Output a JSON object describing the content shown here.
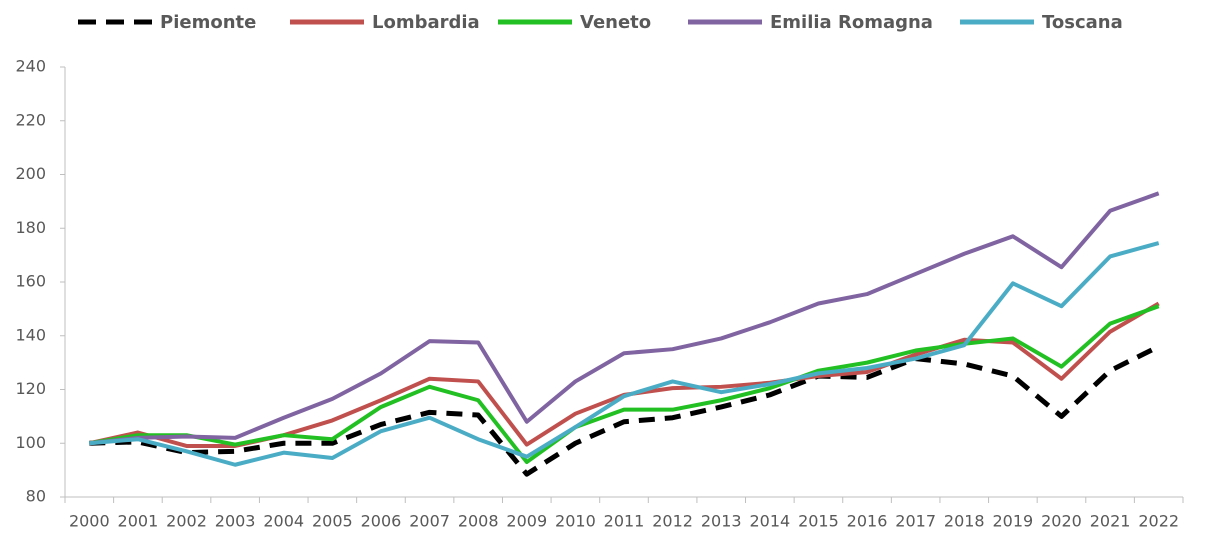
{
  "chart_data": {
    "type": "line",
    "categories": [
      "2000",
      "2001",
      "2002",
      "2003",
      "2004",
      "2005",
      "2006",
      "2007",
      "2008",
      "2009",
      "2010",
      "2011",
      "2012",
      "2013",
      "2014",
      "2015",
      "2016",
      "2017",
      "2018",
      "2019",
      "2020",
      "2021",
      "2022"
    ],
    "series": [
      {
        "name": "Piemonte",
        "color": "#000000",
        "dashed": true,
        "values": [
          100,
          100.5,
          96.5,
          97,
          100,
          100,
          107,
          111.5,
          110.5,
          88.5,
          100,
          108,
          109.5,
          113.5,
          118,
          125,
          124.5,
          131.5,
          129.5,
          125,
          110,
          127,
          136
        ]
      },
      {
        "name": "Lombardia",
        "color": "#c0504d",
        "values": [
          100,
          104,
          99,
          99,
          103,
          108.5,
          116,
          124,
          123,
          99.5,
          111,
          118,
          120.5,
          121,
          122.5,
          125,
          126.5,
          133,
          138.5,
          137.5,
          124,
          141.5,
          152
        ]
      },
      {
        "name": "Veneto",
        "color": "#22c022",
        "values": [
          100,
          103,
          103,
          99.5,
          103,
          101.5,
          113.5,
          121,
          116,
          93,
          106,
          112.5,
          112.5,
          116,
          120.5,
          127,
          130,
          134.5,
          137,
          139,
          128.5,
          144.5,
          151
        ]
      },
      {
        "name": "Emilia Romagna",
        "color": "#8064a2",
        "values": [
          100,
          102,
          102.5,
          102,
          109.5,
          116.5,
          126,
          138,
          137.5,
          108,
          123,
          133.5,
          135,
          139,
          145,
          152,
          155.5,
          163,
          170.5,
          177,
          165.5,
          186.5,
          193
        ]
      },
      {
        "name": "Toscana",
        "color": "#4bacc6",
        "values": [
          100,
          101.5,
          97,
          92,
          96.5,
          94.5,
          104.5,
          109.5,
          101.5,
          95,
          106,
          117.5,
          123,
          119,
          122,
          126,
          128,
          131.5,
          136.5,
          159.5,
          151,
          169.5,
          174.5
        ]
      }
    ],
    "ylim": [
      80,
      240
    ],
    "yticks": [
      80,
      100,
      120,
      140,
      160,
      180,
      200,
      220,
      240
    ],
    "grid": false,
    "legend": "top"
  }
}
